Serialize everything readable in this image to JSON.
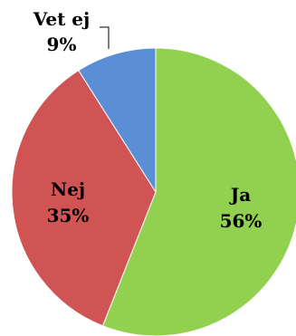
{
  "chart_data": {
    "type": "pie",
    "title": "",
    "slices": [
      {
        "name": "Ja",
        "value": 56,
        "label": "56%",
        "color": "#92d050"
      },
      {
        "name": "Nej",
        "value": 35,
        "label": "35%",
        "color": "#d05454"
      },
      {
        "name": "Vet ej",
        "value": 9,
        "label": "9%",
        "color": "#5b8fd5"
      }
    ],
    "start": "top",
    "direction": "clockwise",
    "legend": "none"
  }
}
